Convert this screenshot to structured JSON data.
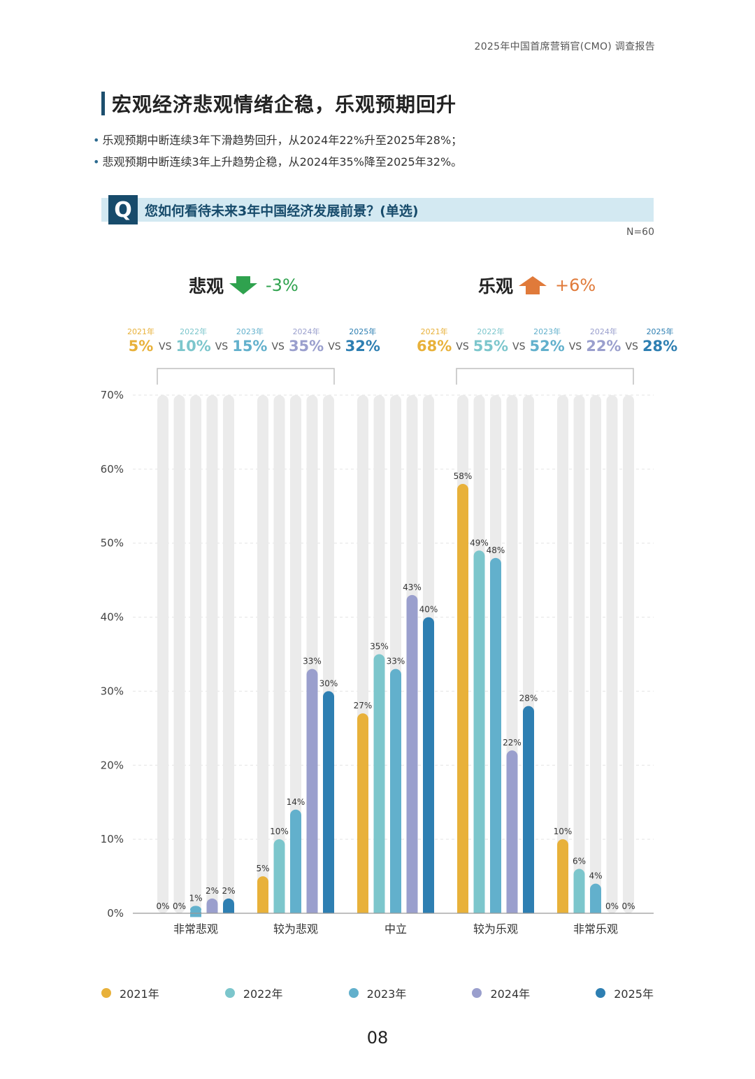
{
  "header": {
    "report_title": "2025年中国首席营销官(CMO) 调查报告"
  },
  "section": {
    "title": "宏观经济悲观情绪企稳，乐观预期回升",
    "bullets": [
      "乐观预期中断连续3年下滑趋势回升，从2024年22%升至2025年28%；",
      "悲观预期中断连续3年上升趋势企稳，从2024年35%降至2025年32%。"
    ]
  },
  "question": {
    "icon": "Q",
    "text": "您如何看待未来3年中国经济发展前景？(单选)",
    "n_label": "N=60"
  },
  "summary": {
    "pessimistic": {
      "label": "悲观",
      "change": "-3%",
      "arrow": "down-arrow-icon",
      "arrow_color": "#2fa24e",
      "years": [
        "2021年",
        "2022年",
        "2023年",
        "2024年",
        "2025年"
      ],
      "values": [
        "5%",
        "10%",
        "15%",
        "35%",
        "32%"
      ],
      "vs": "VS"
    },
    "optimistic": {
      "label": "乐观",
      "change": "+6%",
      "arrow": "up-arrow-icon",
      "arrow_color": "#e07a3a",
      "years": [
        "2021年",
        "2022年",
        "2023年",
        "2024年",
        "2025年"
      ],
      "values": [
        "68%",
        "55%",
        "52%",
        "22%",
        "28%"
      ],
      "vs": "VS"
    }
  },
  "chart_data": {
    "type": "bar",
    "categories": [
      "非常悲观",
      "较为悲观",
      "中立",
      "较为乐观",
      "非常乐观"
    ],
    "series": [
      {
        "name": "2021年",
        "color": "#e8b13a",
        "values": [
          0,
          5,
          27,
          58,
          10
        ],
        "labels": [
          "0%",
          "5%",
          "27%",
          "58%",
          "10%"
        ]
      },
      {
        "name": "2022年",
        "color": "#7cc6cc",
        "values": [
          0,
          10,
          35,
          49,
          6
        ],
        "labels": [
          "0%",
          "10%",
          "35%",
          "49%",
          "6%"
        ]
      },
      {
        "name": "2023年",
        "color": "#62b0cc",
        "values": [
          1,
          14,
          33,
          48,
          4
        ],
        "labels": [
          "1%",
          "14%",
          "33%",
          "48%",
          "4%"
        ]
      },
      {
        "name": "2024年",
        "color": "#9a9fcd",
        "values": [
          2,
          33,
          43,
          22,
          0
        ],
        "labels": [
          "2%",
          "33%",
          "43%",
          "22%",
          "0%"
        ]
      },
      {
        "name": "2025年",
        "color": "#2e7fb2",
        "values": [
          2,
          30,
          40,
          28,
          0
        ],
        "labels": [
          "2%",
          "30%",
          "40%",
          "28%",
          "0%"
        ]
      }
    ],
    "yticks": [
      "0%",
      "10%",
      "20%",
      "30%",
      "40%",
      "50%",
      "60%",
      "70%"
    ],
    "ylim": [
      0,
      70
    ],
    "grid": true,
    "legend": "bottom"
  },
  "page_number": "08"
}
